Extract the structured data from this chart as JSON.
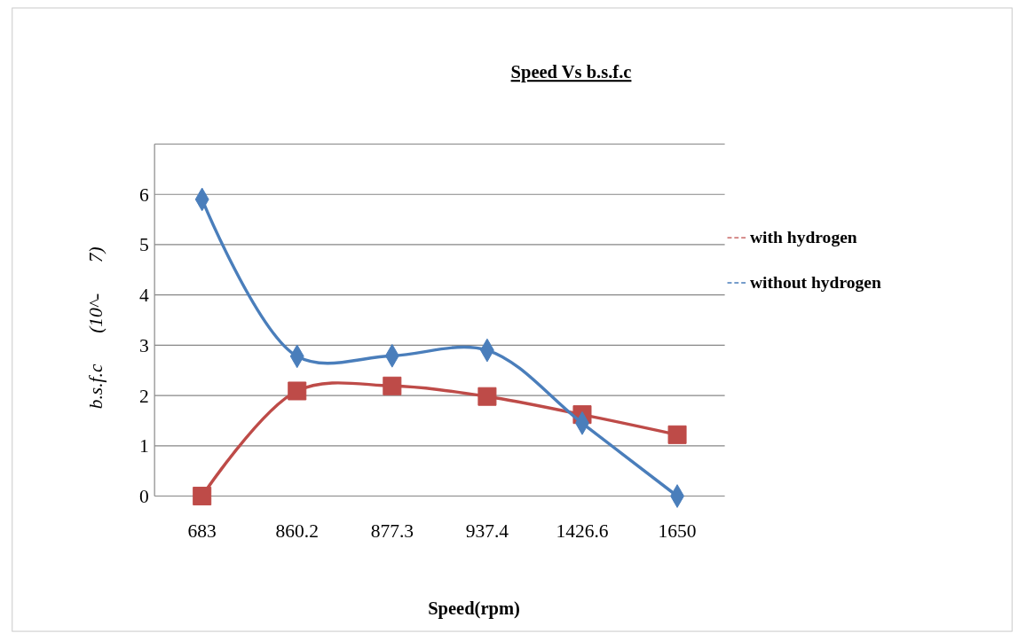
{
  "chart_data": {
    "type": "line",
    "title": "Speed Vs b.s.f.c",
    "xlabel": "Speed(rpm)",
    "ylabel": "b.s.f.c (10^- 7)",
    "categories": [
      "683",
      "860.2",
      "877.3",
      "937.4",
      "1426.6",
      "1650"
    ],
    "series": [
      {
        "name": "with hydrogen",
        "color": "#be4b48",
        "marker": "square",
        "values": [
          0,
          2.09,
          2.19,
          1.98,
          1.62,
          1.22
        ]
      },
      {
        "name": "without hydrogen",
        "color": "#4a7ebb",
        "marker": "diamond",
        "values": [
          5.9,
          2.78,
          2.79,
          2.9,
          1.45,
          0
        ]
      }
    ],
    "ylim": [
      0,
      7
    ],
    "yticks": [
      0,
      1,
      2,
      3,
      4,
      5,
      6,
      {
        "value": 7,
        "label": null
      }
    ],
    "grid": "y",
    "legend": "right",
    "line_style": "solid"
  }
}
